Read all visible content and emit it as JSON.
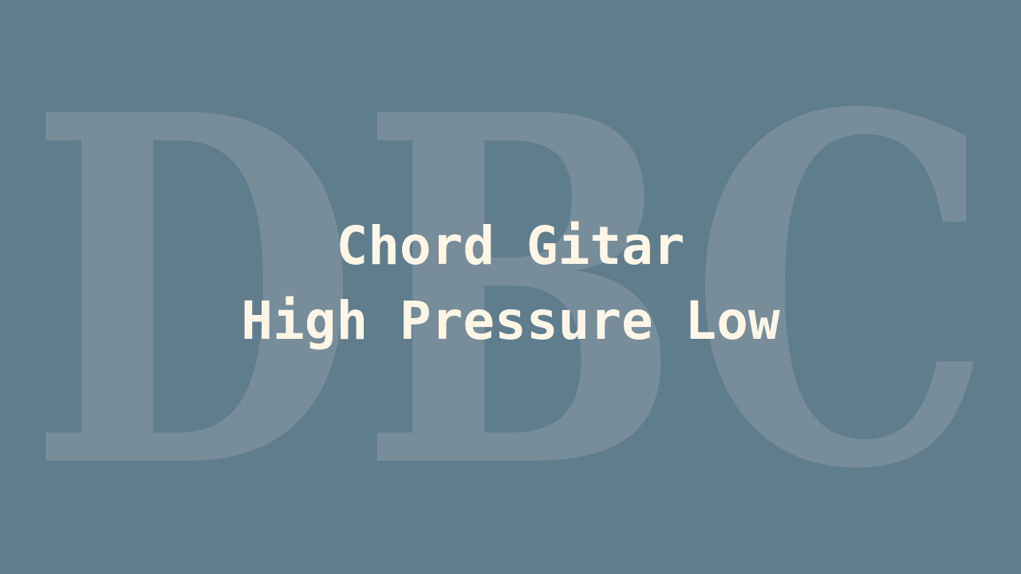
{
  "background_color": "#607d8e",
  "watermark": {
    "text": "DBC",
    "color": "#778d9a"
  },
  "title": {
    "color": "#fdf6e7",
    "line1": "Chord Gitar",
    "line2": "High Pressure Low"
  }
}
